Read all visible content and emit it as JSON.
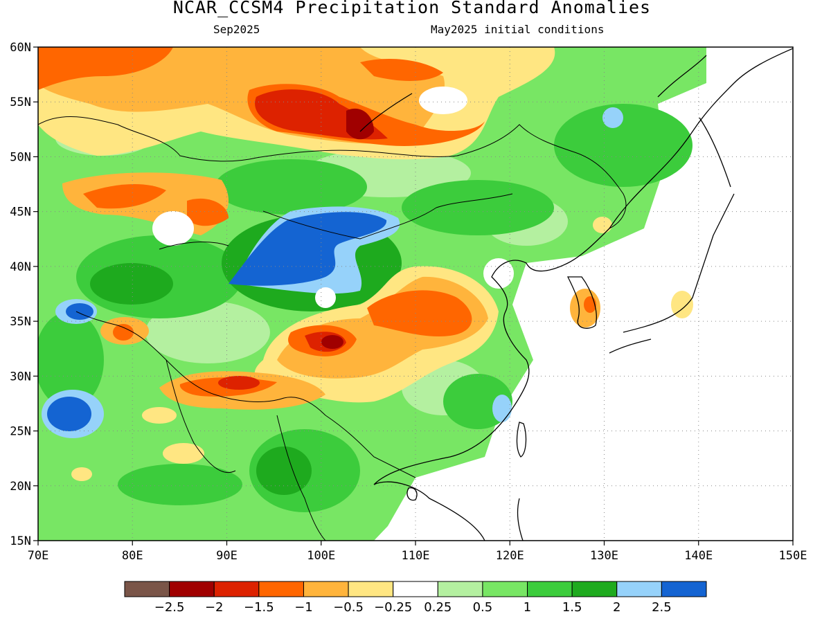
{
  "title": "NCAR_CCSM4 Precipitation Standard Anomalies",
  "subtitle_left": "Sep2025",
  "subtitle_right": "May2025 initial conditions",
  "map": {
    "region": "East Asia",
    "lon_range": [
      70,
      150
    ],
    "lat_range": [
      15,
      60
    ],
    "lon_ticks": [
      "70E",
      "80E",
      "90E",
      "100E",
      "110E",
      "120E",
      "130E",
      "140E",
      "150E"
    ],
    "lat_ticks": [
      "15N",
      "20N",
      "25N",
      "30N",
      "35N",
      "40N",
      "45N",
      "50N",
      "55N",
      "60N"
    ],
    "gridlines": "dotted"
  },
  "legend": {
    "colors": [
      "#7a5548",
      "#a00000",
      "#dd2200",
      "#ff6600",
      "#ffb43c",
      "#ffe682",
      "#ffffff",
      "#b4f0a0",
      "#78e664",
      "#3ccc3c",
      "#1eaa1e",
      "#96d2fa",
      "#1464d2"
    ],
    "labels": [
      "−2.5",
      "−2",
      "−1.5",
      "−1",
      "−0.5",
      "−0.25",
      "0.25",
      "0.5",
      "1",
      "1.5",
      "2",
      "2.5"
    ]
  }
}
